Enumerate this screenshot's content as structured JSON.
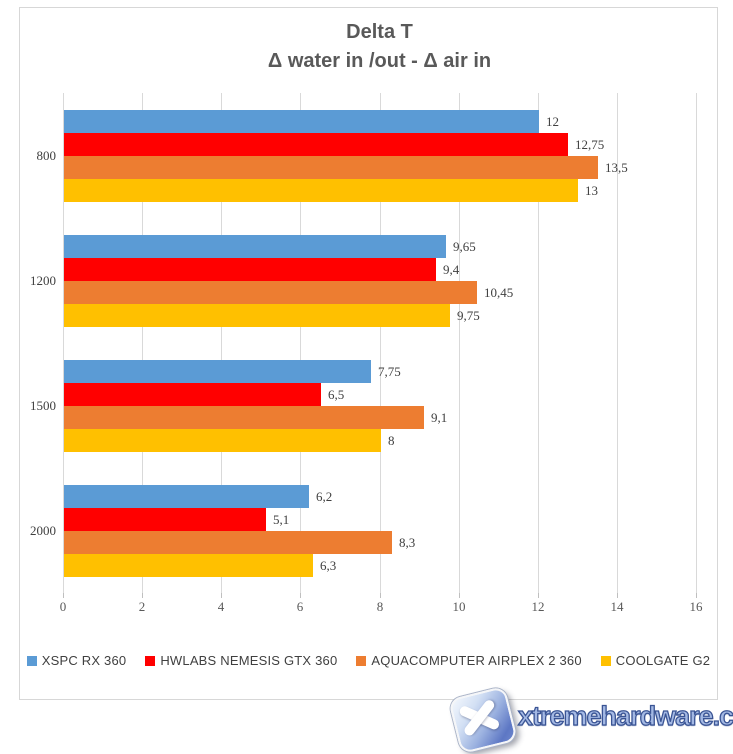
{
  "title": {
    "line1": "Delta T",
    "line2": "Δ water in /out - Δ air in"
  },
  "chart_data": {
    "type": "bar",
    "orientation": "horizontal",
    "title": "Delta T",
    "subtitle": "Δ water in /out - Δ air in",
    "categories": [
      "800",
      "1200",
      "1500",
      "2000"
    ],
    "series": [
      {
        "name": "XSPC RX 360",
        "color": "#5B9BD5",
        "values": [
          12,
          9.65,
          7.75,
          6.2
        ],
        "labels": [
          "12",
          "9,65",
          "7,75",
          "6,2"
        ]
      },
      {
        "name": "HWLABS NEMESIS GTX 360",
        "color": "#FF0000",
        "values": [
          12.75,
          9.4,
          6.5,
          5.1
        ],
        "labels": [
          "12,75",
          "9,4",
          "6,5",
          "5,1"
        ]
      },
      {
        "name": "AQUACOMPUTER AIRPLEX 2 360",
        "color": "#ED7D31",
        "values": [
          13.5,
          10.45,
          9.1,
          8.3
        ],
        "labels": [
          "13,5",
          "10,45",
          "9,1",
          "8,3"
        ]
      },
      {
        "name": "COOLGATE G2",
        "color": "#FFC000",
        "values": [
          13,
          9.75,
          8,
          6.3
        ],
        "labels": [
          "13",
          "9,75",
          "8",
          "6,3"
        ]
      }
    ],
    "xlim": [
      0,
      16
    ],
    "x_ticks": [
      "0",
      "2",
      "4",
      "6",
      "8",
      "10",
      "12",
      "14",
      "16"
    ],
    "grid": "vertical-only",
    "legend_position": "bottom",
    "gridline_color": "#D9D9D9",
    "title_color": "#595959",
    "label_color": "#404040"
  },
  "watermark": {
    "text": "xtremehardware.com",
    "icon": "x-badge-icon"
  }
}
